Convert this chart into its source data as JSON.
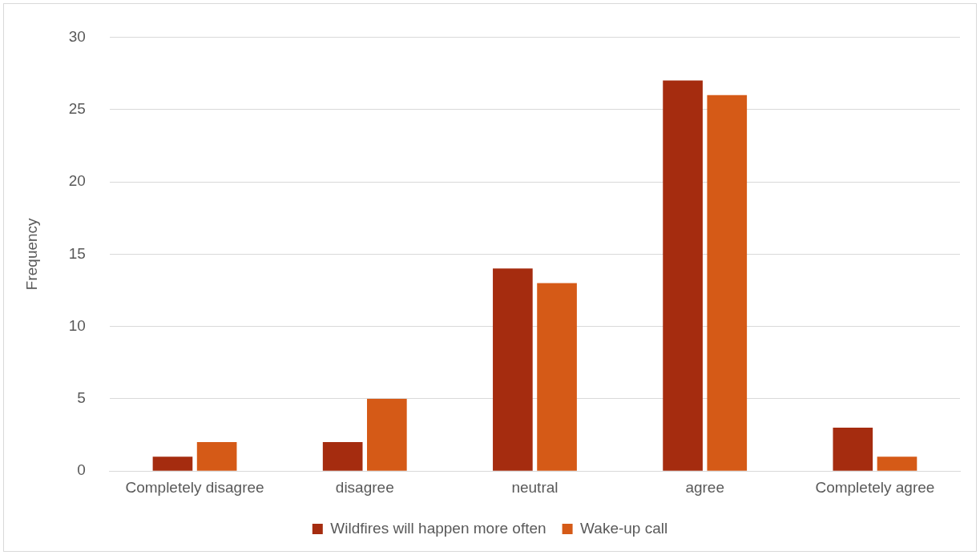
{
  "chart_data": {
    "type": "bar",
    "categories": [
      "Completely disagree",
      "disagree",
      "neutral",
      "agree",
      "Completely agree"
    ],
    "series": [
      {
        "name": "Wildfires will happen more often",
        "color": "#a52c0f",
        "values": [
          1,
          2,
          14,
          27,
          3
        ]
      },
      {
        "name": "Wake-up call",
        "color": "#d55a17",
        "values": [
          2,
          5,
          13,
          26,
          1
        ]
      }
    ],
    "ylabel": "Frequency",
    "ylim": [
      0,
      30
    ],
    "yticks": [
      0,
      5,
      10,
      15,
      20,
      25,
      30
    ],
    "grid": "y",
    "legend": "bottom"
  }
}
